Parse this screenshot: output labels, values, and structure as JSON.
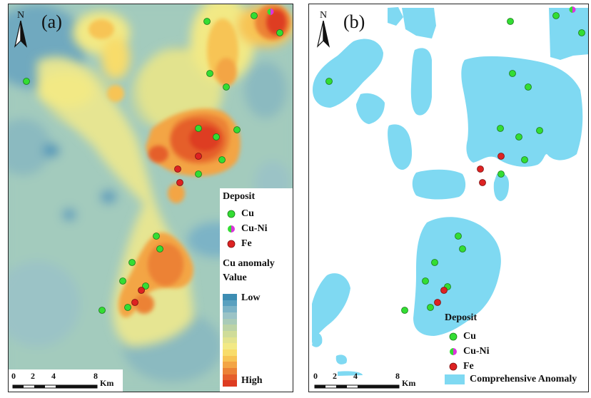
{
  "panel_a": {
    "label": "(a)",
    "north_label": "N",
    "legend": {
      "deposit_title": "Deposit",
      "items": [
        {
          "label": "Cu",
          "symbol": "green-dot"
        },
        {
          "label": "Cu-Ni",
          "symbol": "green-magenta-dot"
        },
        {
          "label": "Fe",
          "symbol": "red-dot"
        }
      ],
      "anomaly_title_line1": "Cu anomaly",
      "anomaly_title_line2": "Value",
      "low_label": "Low",
      "high_label": "High",
      "ramp_colors": [
        "#3d8db3",
        "#5aa0bf",
        "#7cb3c6",
        "#9bc3c6",
        "#a9cbb8",
        "#bcd3a6",
        "#cfdc99",
        "#e2e38e",
        "#f2e985",
        "#f8dc6a",
        "#f7c454",
        "#f3a545",
        "#ec8236",
        "#e55f2b",
        "#de3c22"
      ]
    },
    "scale": {
      "labels": [
        "0",
        "2",
        "4",
        "8"
      ],
      "unit": "Km"
    }
  },
  "panel_b": {
    "label": "(b)",
    "north_label": "N",
    "legend": {
      "deposit_title": "Deposit",
      "items": [
        {
          "label": "Cu",
          "symbol": "green-dot"
        },
        {
          "label": "Cu-Ni",
          "symbol": "green-magenta-dot"
        },
        {
          "label": "Fe",
          "symbol": "red-dot"
        }
      ],
      "anomaly_label": "Comprehensive Anomaly",
      "anomaly_color": "#7fd9f2"
    },
    "scale": {
      "labels": [
        "0",
        "2",
        "4",
        "8"
      ],
      "unit": "Km"
    }
  },
  "colors": {
    "cu": "#33dd33",
    "cu_ni_magenta": "#dd33dd",
    "fe": "#dd2222"
  }
}
